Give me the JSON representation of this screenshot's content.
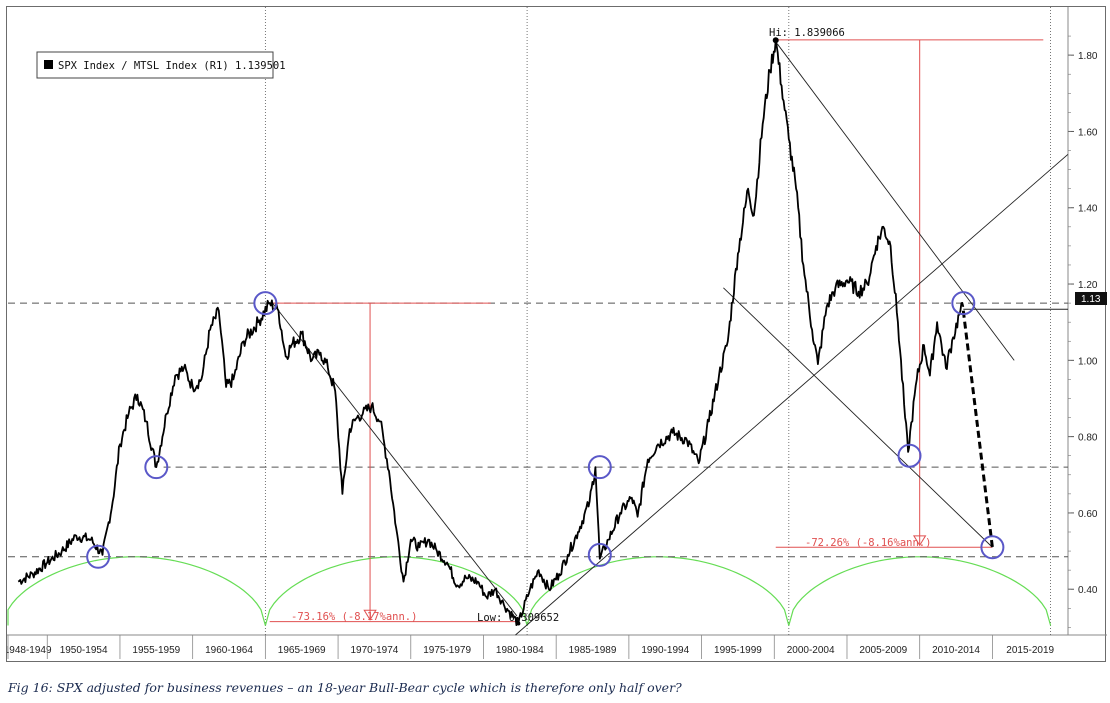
{
  "caption": "Fig 16: SPX adjusted for business revenues – an 18-year Bull-Bear cycle which is therefore only half over?",
  "chart_data": {
    "type": "line",
    "title": "",
    "legend": {
      "label": "SPX Index / MTSL Index (R1) 1.139501",
      "placement": "top-left"
    },
    "x_categories": [
      "1948-1949",
      "1950-1954",
      "1955-1959",
      "1960-1964",
      "1965-1969",
      "1970-1974",
      "1975-1979",
      "1980-1984",
      "1985-1989",
      "1990-1994",
      "1995-1999",
      "2000-2004",
      "2005-2009",
      "2010-2014",
      "2015-2019"
    ],
    "yaxis": {
      "position": "right",
      "range": [
        0.28,
        1.9
      ],
      "ticks": [
        "0.40",
        "0.60",
        "0.80",
        "1.00",
        "1.20",
        "1.40",
        "1.60",
        "1.80"
      ],
      "tick_values": [
        0.4,
        0.6,
        0.8,
        1.0,
        1.2,
        1.4,
        1.6,
        1.8
      ]
    },
    "last_value_label": "1.13",
    "series": [
      {
        "name": "SPX Index / MTSL Index (R1)",
        "color": "#000000",
        "points": [
          [
            1948.0,
            0.42
          ],
          [
            1949.0,
            0.44
          ],
          [
            1950.0,
            0.47
          ],
          [
            1951.0,
            0.5
          ],
          [
            1952.0,
            0.54
          ],
          [
            1953.0,
            0.53
          ],
          [
            1953.8,
            0.49
          ],
          [
            1954.5,
            0.63
          ],
          [
            1955.0,
            0.78
          ],
          [
            1955.6,
            0.86
          ],
          [
            1956.2,
            0.91
          ],
          [
            1956.8,
            0.84
          ],
          [
            1957.5,
            0.72
          ],
          [
            1958.2,
            0.86
          ],
          [
            1958.8,
            0.96
          ],
          [
            1959.4,
            0.98
          ],
          [
            1960.0,
            0.93
          ],
          [
            1960.6,
            0.95
          ],
          [
            1961.2,
            1.08
          ],
          [
            1961.8,
            1.13
          ],
          [
            1962.3,
            0.93
          ],
          [
            1962.8,
            0.95
          ],
          [
            1963.5,
            1.05
          ],
          [
            1964.5,
            1.1
          ],
          [
            1965.3,
            1.15
          ],
          [
            1965.9,
            1.13
          ],
          [
            1966.4,
            1.01
          ],
          [
            1966.8,
            1.04
          ],
          [
            1967.5,
            1.07
          ],
          [
            1968.2,
            1.0
          ],
          [
            1968.8,
            1.02
          ],
          [
            1969.3,
            0.98
          ],
          [
            1969.8,
            0.92
          ],
          [
            1970.3,
            0.65
          ],
          [
            1970.8,
            0.82
          ],
          [
            1971.3,
            0.85
          ],
          [
            1971.7,
            0.86
          ],
          [
            1972.3,
            0.88
          ],
          [
            1972.9,
            0.84
          ],
          [
            1973.5,
            0.71
          ],
          [
            1974.0,
            0.56
          ],
          [
            1974.5,
            0.42
          ],
          [
            1975.0,
            0.53
          ],
          [
            1975.6,
            0.51
          ],
          [
            1976.2,
            0.53
          ],
          [
            1976.8,
            0.5
          ],
          [
            1977.5,
            0.47
          ],
          [
            1978.2,
            0.41
          ],
          [
            1978.8,
            0.43
          ],
          [
            1979.6,
            0.42
          ],
          [
            1980.2,
            0.38
          ],
          [
            1980.8,
            0.4
          ],
          [
            1981.4,
            0.36
          ],
          [
            1982.0,
            0.33
          ],
          [
            1982.4,
            0.31
          ],
          [
            1983.2,
            0.4
          ],
          [
            1983.8,
            0.45
          ],
          [
            1984.5,
            0.4
          ],
          [
            1985.2,
            0.44
          ],
          [
            1985.8,
            0.49
          ],
          [
            1986.5,
            0.55
          ],
          [
            1987.3,
            0.63
          ],
          [
            1987.7,
            0.72
          ],
          [
            1988.0,
            0.48
          ],
          [
            1988.6,
            0.53
          ],
          [
            1989.4,
            0.6
          ],
          [
            1990.2,
            0.64
          ],
          [
            1990.6,
            0.59
          ],
          [
            1991.3,
            0.74
          ],
          [
            1992.0,
            0.78
          ],
          [
            1993.0,
            0.81
          ],
          [
            1994.0,
            0.79
          ],
          [
            1994.8,
            0.73
          ],
          [
            1995.5,
            0.84
          ],
          [
            1996.2,
            0.96
          ],
          [
            1996.8,
            1.05
          ],
          [
            1997.5,
            1.28
          ],
          [
            1998.2,
            1.45
          ],
          [
            1998.6,
            1.38
          ],
          [
            1999.2,
            1.62
          ],
          [
            1999.7,
            1.76
          ],
          [
            2000.1,
            1.84
          ],
          [
            2000.5,
            1.72
          ],
          [
            2001.0,
            1.58
          ],
          [
            2001.5,
            1.45
          ],
          [
            2002.0,
            1.25
          ],
          [
            2002.6,
            1.08
          ],
          [
            2003.0,
            0.99
          ],
          [
            2003.6,
            1.14
          ],
          [
            2004.2,
            1.19
          ],
          [
            2005.0,
            1.21
          ],
          [
            2005.8,
            1.18
          ],
          [
            2006.4,
            1.2
          ],
          [
            2007.0,
            1.3
          ],
          [
            2007.5,
            1.35
          ],
          [
            2008.0,
            1.3
          ],
          [
            2008.5,
            1.1
          ],
          [
            2009.0,
            0.85
          ],
          [
            2009.2,
            0.76
          ],
          [
            2009.8,
            0.95
          ],
          [
            2010.3,
            1.04
          ],
          [
            2010.7,
            0.96
          ],
          [
            2011.2,
            1.1
          ],
          [
            2011.8,
            0.98
          ],
          [
            2012.3,
            1.06
          ],
          [
            2012.8,
            1.13
          ],
          [
            2013.0,
            1.14
          ]
        ]
      }
    ],
    "annotations": {
      "hi_label": "Hi: 1.839066",
      "low_label": "Low: 0.309652",
      "drawdown_1_label": "-73.16% (-8.17%ann.)",
      "drawdown_2_label": "-72.26% (-8.16%ann.)"
    },
    "dashed_levels": [
      1.15,
      0.72,
      0.485
    ],
    "circled_points": [
      [
        1953.5,
        0.485
      ],
      [
        1957.5,
        0.72
      ],
      [
        1965.0,
        1.15
      ],
      [
        1988.0,
        0.72
      ],
      [
        1988.0,
        0.49
      ],
      [
        2009.3,
        0.75
      ],
      [
        2013.0,
        1.15
      ],
      [
        2015.0,
        0.51
      ]
    ],
    "projection": [
      [
        2013.0,
        1.13
      ],
      [
        2015.0,
        0.51
      ]
    ],
    "cycle_arcs": {
      "color": "#66dd55",
      "troughs": [
        1947,
        1965,
        1983,
        2001,
        2019
      ],
      "peak_value": 0.485,
      "trough_value": 0.305
    },
    "colors": {
      "series": "#000000",
      "drawdown": "#e05050",
      "cycle": "#66dd55",
      "circle": "#5a58c8",
      "frame": "#6c6c6c"
    },
    "grid": "vertical dotted separators at 1965, 1983, 2001, 2019"
  }
}
